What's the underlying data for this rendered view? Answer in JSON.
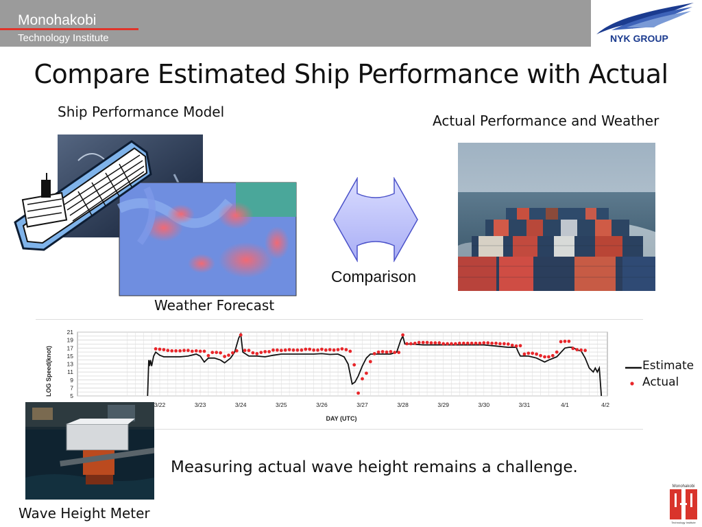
{
  "header": {
    "brand_line1": "Monohakobi",
    "brand_line2": "Technology Institute",
    "logo_text": "NYK GROUP",
    "colors": {
      "bar": "#9b9b9b",
      "accent": "#e0342a",
      "logo_blue": "#1b3b8f"
    }
  },
  "slide": {
    "title": "Compare Estimated Ship Performance with Actual",
    "caption_model": "Ship Performance Model",
    "caption_actual": "Actual Performance and Weather",
    "caption_weather": "Weather Forecast",
    "comparison_label": "Comparison",
    "caption_wave": "Wave Height Meter",
    "bottom_text": "Measuring actual wave height remains a challenge."
  },
  "icons": [
    "ship-icon",
    "weather-map-image",
    "comparison-arrow-icon",
    "container-ship-photo",
    "wave-meter-photo",
    "nyk-logo-icon",
    "monohakobi-logo-icon"
  ],
  "chart_data": {
    "type": "line",
    "xlabel": "DAY (UTC)",
    "ylabel": "LOG Speed(knot)",
    "ylim": [
      5,
      21
    ],
    "yticks": [
      "5",
      "7",
      "9",
      "11",
      "13",
      "15",
      "17",
      "19",
      "21"
    ],
    "xticks": [
      "3/22",
      "3/23",
      "3/24",
      "3/25",
      "3/26",
      "3/27",
      "3/28",
      "3/29",
      "3/30",
      "3/31",
      "4/1",
      "4/2"
    ],
    "legend": [
      "Estimate",
      "Actual"
    ],
    "series": [
      {
        "name": "Estimate",
        "color": "#111111",
        "x": [
          21.7,
          21.73,
          21.75,
          21.77,
          21.8,
          21.85,
          21.9,
          22.0,
          22.1,
          22.3,
          22.5,
          22.7,
          22.9,
          23.0,
          23.1,
          23.2,
          23.35,
          23.5,
          23.6,
          23.75,
          23.85,
          23.95,
          24.0,
          24.05,
          24.2,
          24.4,
          24.6,
          24.8,
          25.0,
          25.2,
          25.4,
          25.6,
          25.8,
          26.0,
          26.2,
          26.4,
          26.55,
          26.65,
          26.75,
          26.82,
          26.9,
          27.0,
          27.1,
          27.2,
          27.35,
          27.5,
          27.7,
          27.85,
          27.95,
          28.0,
          28.05,
          28.2,
          28.5,
          28.8,
          29.1,
          29.4,
          29.7,
          30.0,
          30.3,
          30.6,
          30.8,
          30.85,
          30.9,
          31.1,
          31.3,
          31.4,
          31.5,
          31.6,
          31.8,
          32.0,
          32.1,
          32.2,
          32.3,
          32.4,
          32.5,
          32.6,
          32.7,
          32.75,
          32.8,
          32.85,
          32.9
        ],
        "values": [
          5,
          14,
          12.5,
          14,
          12.5,
          15,
          16,
          15.2,
          14.8,
          14.8,
          14.8,
          15,
          15.5,
          15,
          13.5,
          14.5,
          14.5,
          14,
          13.3,
          14.5,
          16,
          19.5,
          20.5,
          16,
          15,
          15,
          14.8,
          15.2,
          15.5,
          15.5,
          15.5,
          15.5,
          15.5,
          15.6,
          15.4,
          15.5,
          14.8,
          13,
          8,
          8.5,
          10,
          12.5,
          14.5,
          15.5,
          15.5,
          15.5,
          15.5,
          16,
          19,
          20,
          18,
          18,
          17.8,
          17.8,
          17.8,
          17.8,
          17.8,
          17.8,
          17.5,
          17.2,
          17.2,
          16,
          15,
          15,
          14.5,
          14,
          13.5,
          14,
          14.8,
          17,
          17.2,
          17.2,
          16.5,
          16.3,
          14.5,
          12,
          11,
          12,
          11,
          12,
          5
        ]
      },
      {
        "name": "Actual",
        "color": "#e8262a",
        "x": [
          21.9,
          22.0,
          22.1,
          22.2,
          22.3,
          22.4,
          22.5,
          22.6,
          22.7,
          22.8,
          22.9,
          23.0,
          23.1,
          23.2,
          23.3,
          23.4,
          23.5,
          23.6,
          23.7,
          23.8,
          23.9,
          24.0,
          24.1,
          24.2,
          24.3,
          24.4,
          24.5,
          24.6,
          24.7,
          24.8,
          24.9,
          25.0,
          25.1,
          25.2,
          25.3,
          25.4,
          25.5,
          25.6,
          25.7,
          25.8,
          25.9,
          26.0,
          26.1,
          26.2,
          26.3,
          26.4,
          26.5,
          26.6,
          26.7,
          26.8,
          26.9,
          27.0,
          27.1,
          27.2,
          27.3,
          27.4,
          27.5,
          27.6,
          27.7,
          27.8,
          27.9,
          28.0,
          28.1,
          28.2,
          28.3,
          28.4,
          28.5,
          28.6,
          28.7,
          28.8,
          28.9,
          29.0,
          29.1,
          29.2,
          29.3,
          29.4,
          29.5,
          29.6,
          29.7,
          29.8,
          29.9,
          30.0,
          30.1,
          30.2,
          30.3,
          30.4,
          30.5,
          30.6,
          30.7,
          30.8,
          30.9,
          31.0,
          31.1,
          31.2,
          31.3,
          31.4,
          31.5,
          31.6,
          31.7,
          31.8,
          31.9,
          32.0,
          32.1,
          32.2,
          32.3,
          32.4,
          32.5
        ],
        "values": [
          16.8,
          16.7,
          16.6,
          16.4,
          16.3,
          16.3,
          16.3,
          16.4,
          16.4,
          16.2,
          16.3,
          16.2,
          16.2,
          15.1,
          15.9,
          15.9,
          15.8,
          14.9,
          15.2,
          15.8,
          16.3,
          20.3,
          16.4,
          16.4,
          15.8,
          15.6,
          15.9,
          16.1,
          16.1,
          16.5,
          16.5,
          16.4,
          16.5,
          16.6,
          16.5,
          16.5,
          16.5,
          16.7,
          16.7,
          16.5,
          16.5,
          16.7,
          16.5,
          16.6,
          16.5,
          16.6,
          16.8,
          16.6,
          16.2,
          12.8,
          5.7,
          9.3,
          10.7,
          13.6,
          15.6,
          16,
          16.1,
          16,
          16.1,
          15.9,
          15.9,
          20.3,
          18.1,
          18.1,
          18.2,
          18.4,
          18.4,
          18.4,
          18.3,
          18.3,
          18.3,
          18.1,
          18.1,
          18.1,
          18.1,
          18.2,
          18.2,
          18.2,
          18.2,
          18.2,
          18.2,
          18.3,
          18.3,
          18.2,
          18.2,
          18.1,
          18.1,
          18,
          17.7,
          17.5,
          17.6,
          15.5,
          15.7,
          15.7,
          15.5,
          15.1,
          14.8,
          14.8,
          15.1,
          16,
          18.6,
          18.7,
          18.7,
          16.9,
          16.6,
          16.5,
          16.4
        ]
      }
    ]
  }
}
